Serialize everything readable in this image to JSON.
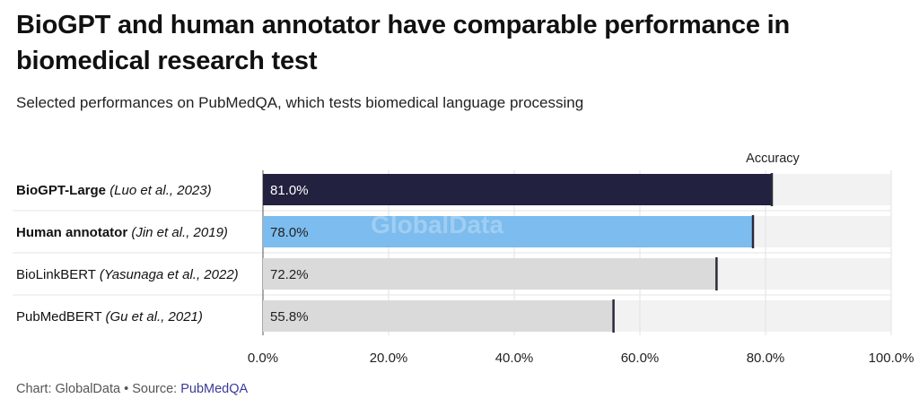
{
  "title": "BioGPT and human annotator have comparable performance in biomedical research test",
  "subtitle": "Selected performances on PubMedQA, which tests biomedical language processing",
  "watermark": "GlobalData",
  "footer": {
    "chart_credit": "Chart: GlobalData",
    "separator": " • ",
    "source_prefix": "Source: ",
    "source_link": "PubMedQA"
  },
  "chart_data": {
    "type": "bar",
    "orientation": "horizontal",
    "value_label": "Accuracy",
    "categories": [
      {
        "name": "BioGPT-Large",
        "citation": "(Luo et al., 2023)",
        "bold": true
      },
      {
        "name": "Human annotator",
        "citation": "(Jin et al., 2019)",
        "bold": true
      },
      {
        "name": "BioLinkBERT",
        "citation": "(Yasunaga et al., 2022)",
        "bold": false
      },
      {
        "name": "PubMedBERT",
        "citation": "(Gu et al., 2021)",
        "bold": false
      }
    ],
    "values": [
      81.0,
      78.0,
      72.2,
      55.8
    ],
    "value_labels": [
      "81.0%",
      "78.0%",
      "72.2%",
      "55.8%"
    ],
    "bar_colors": [
      "#22213f",
      "#7cbcee",
      "#dadada",
      "#dadada"
    ],
    "label_colors": [
      "#ffffff",
      "#222222",
      "#222222",
      "#222222"
    ],
    "track_color": "#f2f2f2",
    "xlim": [
      0,
      100
    ],
    "xticks": [
      0,
      20,
      40,
      60,
      80,
      100
    ],
    "xtick_labels": [
      "0.0%",
      "20.0%",
      "40.0%",
      "60.0%",
      "80.0%",
      "100.0%"
    ],
    "grid": true
  }
}
